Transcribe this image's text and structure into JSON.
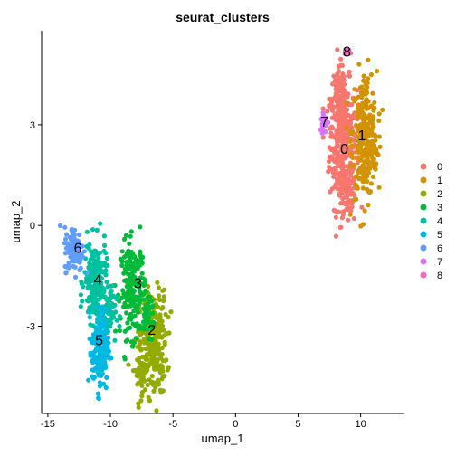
{
  "chart_data": {
    "type": "scatter",
    "title": "seurat_clusters",
    "xlabel": "umap_1",
    "ylabel": "umap_2",
    "xlim": [
      -15.5,
      13.5
    ],
    "ylim": [
      -5.6,
      5.8
    ],
    "xticks": [
      -15,
      -10,
      -5,
      0,
      5,
      10
    ],
    "xtick_labels": [
      "-15",
      "-10",
      "-5",
      "0",
      "5",
      "10"
    ],
    "yticks": [
      -3,
      0,
      3
    ],
    "ytick_labels": [
      "-3",
      "0",
      "3"
    ],
    "grid": false,
    "legend_position": "right",
    "legend": [
      "0",
      "1",
      "2",
      "3",
      "4",
      "5",
      "6",
      "7",
      "8"
    ],
    "cluster_labels": [
      {
        "text": "0",
        "x": 8.7,
        "y": 2.3
      },
      {
        "text": "1",
        "x": 10.1,
        "y": 2.7
      },
      {
        "text": "2",
        "x": -6.7,
        "y": -3.1
      },
      {
        "text": "3",
        "x": -7.8,
        "y": -1.7
      },
      {
        "text": "4",
        "x": -11.0,
        "y": -1.6
      },
      {
        "text": "5",
        "x": -10.9,
        "y": -3.4
      },
      {
        "text": "6",
        "x": -12.6,
        "y": -0.65
      },
      {
        "text": "7",
        "x": 7.1,
        "y": 3.1
      },
      {
        "text": "8",
        "x": 8.9,
        "y": 5.2
      }
    ],
    "series": [
      {
        "name": "0",
        "color": "#F8766D",
        "blobs": [
          [
            8.6,
            2.4,
            1.0,
            1.7,
            300
          ],
          [
            8.3,
            3.8,
            0.7,
            0.9,
            80
          ],
          [
            8.9,
            0.8,
            0.7,
            0.7,
            60
          ]
        ]
      },
      {
        "name": "1",
        "color": "#D39200",
        "blobs": [
          [
            10.3,
            2.7,
            0.9,
            1.7,
            260
          ],
          [
            10.9,
            2.3,
            0.5,
            0.8,
            40
          ]
        ]
      },
      {
        "name": "2",
        "color": "#93AA00",
        "blobs": [
          [
            -6.6,
            -3.5,
            1.0,
            1.4,
            240
          ],
          [
            -7.6,
            -4.3,
            0.6,
            0.7,
            50
          ]
        ]
      },
      {
        "name": "3",
        "color": "#00BA38",
        "blobs": [
          [
            -8.2,
            -1.9,
            0.9,
            1.3,
            200
          ],
          [
            -7.0,
            -2.7,
            0.5,
            0.5,
            40
          ]
        ]
      },
      {
        "name": "4",
        "color": "#00C19F",
        "blobs": [
          [
            -11.2,
            -1.7,
            0.8,
            1.1,
            200
          ],
          [
            -10.2,
            -2.6,
            0.6,
            0.7,
            60
          ]
        ]
      },
      {
        "name": "5",
        "color": "#00B9E3",
        "blobs": [
          [
            -10.8,
            -3.7,
            0.6,
            1.1,
            170
          ]
        ]
      },
      {
        "name": "6",
        "color": "#619CFF",
        "blobs": [
          [
            -12.9,
            -0.7,
            0.7,
            0.6,
            120
          ]
        ]
      },
      {
        "name": "7",
        "color": "#DB72FB",
        "blobs": [
          [
            7.1,
            3.1,
            0.3,
            0.3,
            30
          ]
        ]
      },
      {
        "name": "8",
        "color": "#FF61C3",
        "blobs": [
          [
            8.9,
            5.2,
            0.2,
            0.15,
            10
          ]
        ]
      }
    ]
  }
}
